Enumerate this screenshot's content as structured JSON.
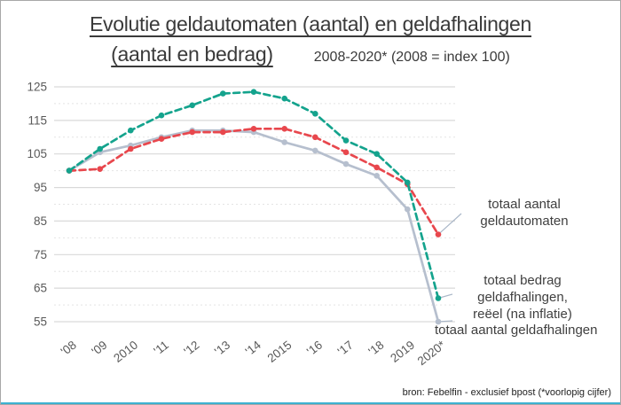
{
  "title": {
    "line1": "Evolutie geldautomaten (aantal) en geldafhalingen",
    "line2": "(aantal en bedrag)",
    "subtitle": "2008-2020* (2008 = index 100)"
  },
  "source": "bron: Febelfin - exclusief bpost (*voorlopig cijfer)",
  "chart_data": {
    "type": "line",
    "title": "Evolutie geldautomaten (aantal) en geldafhalingen (aantal en bedrag)",
    "subtitle": "2008-2020* (2008 = index 100)",
    "categories": [
      "'08",
      "'09",
      "2010",
      "'11",
      "'12",
      "'13",
      "'14",
      "2015",
      "'16",
      "'17",
      "'18",
      "2019",
      "2020*"
    ],
    "series": [
      {
        "name": "totaal aantal geldafhalingen",
        "color": "#b6bfce",
        "dashed": false,
        "values": [
          100,
          105.5,
          107.5,
          110,
          112,
          112,
          111.5,
          108.5,
          106,
          102,
          98.5,
          88.5,
          55
        ]
      },
      {
        "name": "totaal aantal geldautomaten",
        "color": "#e8474d",
        "dashed": true,
        "values": [
          100,
          100.5,
          106.5,
          109.5,
          111.5,
          111.5,
          112.5,
          112.5,
          110,
          105.5,
          101,
          96,
          81
        ]
      },
      {
        "name": "totaal bedrag geldafhalingen, reëel (na inflatie)",
        "color": "#14a38d",
        "dashed": true,
        "values": [
          100,
          106.5,
          112,
          116.5,
          119.5,
          123,
          123.5,
          121.5,
          117,
          109,
          105,
          96.5,
          62
        ]
      }
    ],
    "ylim": [
      55,
      125
    ],
    "yticks": [
      55,
      65,
      75,
      85,
      95,
      105,
      115,
      125
    ],
    "grid": "major horizontal solid, minor horizontal dashed",
    "legend_position": "direct labels at right end of lines",
    "xlabel": "",
    "ylabel": ""
  },
  "annotations": [
    {
      "text": "totaal aantal geldautomaten"
    },
    {
      "text": "totaal bedrag geldafhalingen,\nreëel (na inflatie)"
    },
    {
      "text": "totaal aantal geldafhalingen"
    }
  ],
  "colors": {
    "axis_text": "#595959",
    "grid_major": "#d9d9d9",
    "grid_minor": "#e4e4e4",
    "connector": "#aab7c8",
    "bottom_bar": "#3db1d1"
  }
}
